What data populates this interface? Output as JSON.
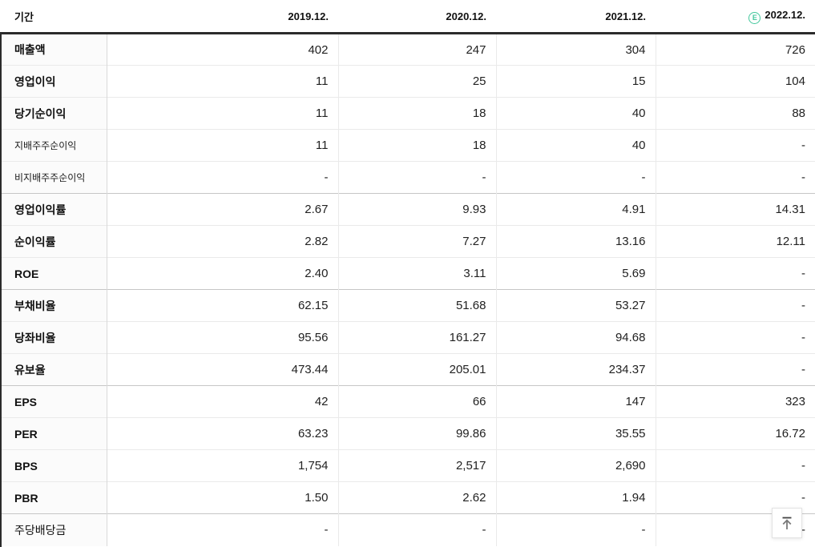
{
  "table": {
    "header": {
      "period_label": "기간",
      "estimate_badge": "E",
      "columns": [
        {
          "label": "2019.12.",
          "estimate": false
        },
        {
          "label": "2020.12.",
          "estimate": false
        },
        {
          "label": "2021.12.",
          "estimate": false
        },
        {
          "label": "2022.12.",
          "estimate": true
        }
      ]
    },
    "rows": [
      {
        "label": "매출액",
        "style": "bold",
        "group_start": false,
        "values": [
          "402",
          "247",
          "304",
          "726"
        ]
      },
      {
        "label": "영업이익",
        "style": "bold",
        "group_start": false,
        "values": [
          "11",
          "25",
          "15",
          "104"
        ]
      },
      {
        "label": "당기순이익",
        "style": "bold",
        "group_start": false,
        "values": [
          "11",
          "18",
          "40",
          "88"
        ]
      },
      {
        "label": "지배주주순이익",
        "style": "sub",
        "group_start": false,
        "values": [
          "11",
          "18",
          "40",
          "-"
        ]
      },
      {
        "label": "비지배주주순이익",
        "style": "sub",
        "group_start": false,
        "values": [
          "-",
          "-",
          "-",
          "-"
        ]
      },
      {
        "label": "영업이익률",
        "style": "bold",
        "group_start": true,
        "values": [
          "2.67",
          "9.93",
          "4.91",
          "14.31"
        ]
      },
      {
        "label": "순이익률",
        "style": "bold",
        "group_start": false,
        "values": [
          "2.82",
          "7.27",
          "13.16",
          "12.11"
        ]
      },
      {
        "label": "ROE",
        "style": "bold",
        "group_start": false,
        "values": [
          "2.40",
          "3.11",
          "5.69",
          "-"
        ]
      },
      {
        "label": "부채비율",
        "style": "bold",
        "group_start": true,
        "values": [
          "62.15",
          "51.68",
          "53.27",
          "-"
        ]
      },
      {
        "label": "당좌비율",
        "style": "bold",
        "group_start": false,
        "values": [
          "95.56",
          "161.27",
          "94.68",
          "-"
        ]
      },
      {
        "label": "유보율",
        "style": "bold",
        "group_start": false,
        "values": [
          "473.44",
          "205.01",
          "234.37",
          "-"
        ]
      },
      {
        "label": "EPS",
        "style": "bold",
        "group_start": true,
        "values": [
          "42",
          "66",
          "147",
          "323"
        ]
      },
      {
        "label": "PER",
        "style": "bold",
        "group_start": false,
        "values": [
          "63.23",
          "99.86",
          "35.55",
          "16.72"
        ]
      },
      {
        "label": "BPS",
        "style": "bold",
        "group_start": false,
        "values": [
          "1,754",
          "2,517",
          "2,690",
          "-"
        ]
      },
      {
        "label": "PBR",
        "style": "bold",
        "group_start": false,
        "values": [
          "1.50",
          "2.62",
          "1.94",
          "-"
        ]
      },
      {
        "label": "주당배당금",
        "style": "normal",
        "group_start": true,
        "values": [
          "-",
          "-",
          "-",
          "-"
        ]
      }
    ]
  },
  "scroll_top": {
    "icon": "scroll-to-top-arrow"
  },
  "colors": {
    "estimate_green": "#42c79c",
    "header_border": "#2b2b2b",
    "group_border": "#c6c6c6",
    "row_border": "#eaeaea",
    "label_bg": "#fbfbfb"
  }
}
